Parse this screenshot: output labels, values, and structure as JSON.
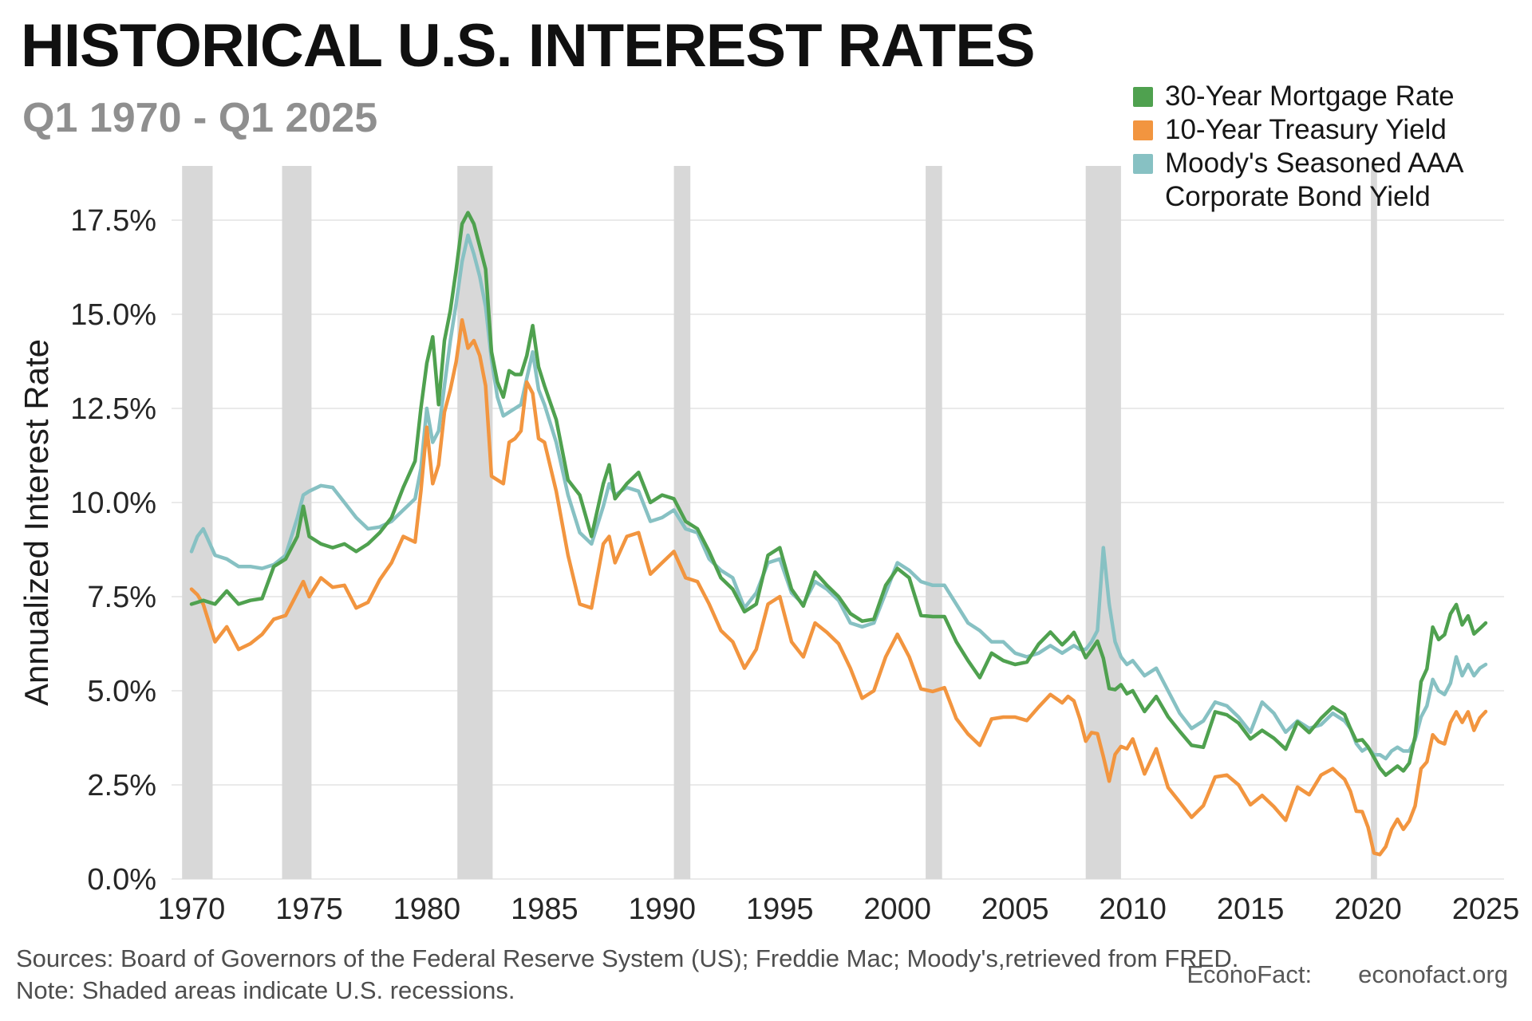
{
  "header": {
    "title": "HISTORICAL U.S. INTEREST RATES",
    "subtitle": "Q1 1970 - Q1 2025"
  },
  "footer": {
    "sources": "Sources: Board of Governors of the Federal Reserve System (US); Freddie Mac; Moody's,retrieved from FRED.",
    "note": "Note: Shaded areas indicate U.S. recessions.",
    "brand": "EconoFact:",
    "site": "econofact.org"
  },
  "chart_data": {
    "type": "line",
    "title": "HISTORICAL U.S. INTEREST RATES",
    "subtitle": "Q1 1970 - Q1 2025",
    "xlabel": "",
    "ylabel": "Annualized Interest Rate",
    "ylim": [
      0,
      18.9
    ],
    "xlim": [
      1969.2,
      2025.8
    ],
    "grid": true,
    "legend_position": "top-right",
    "grid_color": "#EAEAEA",
    "band_color": "#D8D8D8",
    "yticks": {
      "values": [
        0,
        2.5,
        5,
        7.5,
        10,
        12.5,
        15,
        17.5
      ],
      "labels": [
        "0.0%",
        "2.5%",
        "5.0%",
        "7.5%",
        "10.0%",
        "12.5%",
        "15.0%",
        "17.5%"
      ]
    },
    "xticks": [
      1970,
      1975,
      1980,
      1985,
      1990,
      1995,
      2000,
      2005,
      2010,
      2015,
      2020,
      2025
    ],
    "recessions": [
      [
        1969.6,
        1970.9
      ],
      [
        1973.85,
        1975.1
      ],
      [
        1981.3,
        1982.8
      ],
      [
        1990.5,
        1991.2
      ],
      [
        2001.2,
        2001.9
      ],
      [
        2008.0,
        2009.5
      ],
      [
        2020.12,
        2020.38
      ]
    ],
    "x": [
      1970,
      1970.25,
      1970.5,
      1971,
      1971.5,
      1972,
      1972.5,
      1973,
      1973.5,
      1974,
      1974.5,
      1974.75,
      1975,
      1975.5,
      1976,
      1976.5,
      1977,
      1977.5,
      1978,
      1978.5,
      1979,
      1979.5,
      1979.75,
      1980,
      1980.25,
      1980.5,
      1980.75,
      1981,
      1981.25,
      1981.5,
      1981.75,
      1982,
      1982.25,
      1982.5,
      1982.75,
      1983,
      1983.25,
      1983.5,
      1983.75,
      1984,
      1984.25,
      1984.5,
      1984.75,
      1985,
      1985.5,
      1986,
      1986.5,
      1987,
      1987.5,
      1987.75,
      1988,
      1988.5,
      1989,
      1989.5,
      1990,
      1990.5,
      1991,
      1991.5,
      1992,
      1992.5,
      1993,
      1993.5,
      1994,
      1994.5,
      1995,
      1995.5,
      1996,
      1996.5,
      1997,
      1997.5,
      1998,
      1998.5,
      1999,
      1999.5,
      2000,
      2000.5,
      2001,
      2001.5,
      2002,
      2002.5,
      2003,
      2003.5,
      2004,
      2004.5,
      2005,
      2005.5,
      2006,
      2006.5,
      2007,
      2007.25,
      2007.5,
      2007.75,
      2008,
      2008.25,
      2008.5,
      2008.75,
      2009,
      2009.25,
      2009.5,
      2009.75,
      2010,
      2010.5,
      2011,
      2011.5,
      2012,
      2012.5,
      2013,
      2013.5,
      2014,
      2014.5,
      2015,
      2015.5,
      2016,
      2016.5,
      2017,
      2017.5,
      2018,
      2018.5,
      2019,
      2019.25,
      2019.5,
      2019.75,
      2020,
      2020.25,
      2020.5,
      2020.75,
      2021,
      2021.25,
      2021.5,
      2021.75,
      2022,
      2022.25,
      2022.5,
      2022.75,
      2023,
      2023.25,
      2023.5,
      2023.75,
      2024,
      2024.25,
      2024.5,
      2024.75,
      2025
    ],
    "series": [
      {
        "name": "30-Year Mortgage Rate",
        "legend_lines": [
          "30-Year Mortgage Rate"
        ],
        "color": "#4FA14F",
        "values": [
          7.3,
          7.35,
          7.4,
          7.3,
          7.65,
          7.3,
          7.4,
          7.45,
          8.3,
          8.5,
          9.1,
          9.9,
          9.1,
          8.9,
          8.8,
          8.9,
          8.7,
          8.9,
          9.2,
          9.6,
          10.4,
          11.1,
          12.5,
          13.7,
          14.4,
          12.6,
          14.3,
          15.1,
          16.2,
          17.4,
          17.7,
          17.4,
          16.8,
          16.2,
          14.0,
          13.2,
          12.8,
          13.5,
          13.4,
          13.4,
          13.9,
          14.7,
          13.6,
          13.1,
          12.2,
          10.6,
          10.2,
          9.1,
          10.5,
          11.0,
          10.1,
          10.5,
          10.8,
          10.0,
          10.2,
          10.1,
          9.5,
          9.3,
          8.7,
          8.0,
          7.7,
          7.1,
          7.3,
          8.6,
          8.8,
          7.7,
          7.25,
          8.15,
          7.8,
          7.5,
          7.05,
          6.85,
          6.9,
          7.8,
          8.25,
          8.0,
          7.0,
          6.97,
          6.97,
          6.3,
          5.8,
          5.35,
          6.0,
          5.8,
          5.7,
          5.76,
          6.24,
          6.56,
          6.22,
          6.37,
          6.55,
          6.23,
          5.88,
          6.09,
          6.32,
          5.86,
          5.06,
          5.03,
          5.16,
          4.92,
          5.0,
          4.45,
          4.85,
          4.31,
          3.92,
          3.55,
          3.5,
          4.44,
          4.36,
          4.14,
          3.72,
          3.95,
          3.74,
          3.45,
          4.17,
          3.89,
          4.27,
          4.57,
          4.37,
          4.0,
          3.67,
          3.7,
          3.51,
          3.23,
          2.95,
          2.76,
          2.88,
          3.0,
          2.87,
          3.08,
          3.79,
          5.24,
          5.58,
          6.69,
          6.36,
          6.49,
          7.04,
          7.29,
          6.75,
          6.99,
          6.51,
          6.65,
          6.8
        ]
      },
      {
        "name": "10-Year Treasury Yield",
        "legend_lines": [
          "10-Year Treasury Yield"
        ],
        "color": "#F2953F",
        "values": [
          7.7,
          7.55,
          7.3,
          6.3,
          6.7,
          6.1,
          6.25,
          6.5,
          6.9,
          7.0,
          7.6,
          7.9,
          7.5,
          8.0,
          7.75,
          7.8,
          7.2,
          7.35,
          7.95,
          8.4,
          9.1,
          8.95,
          10.3,
          12.0,
          10.5,
          11.0,
          12.4,
          13.0,
          13.75,
          14.85,
          14.1,
          14.3,
          13.9,
          13.1,
          10.7,
          10.6,
          10.5,
          11.6,
          11.7,
          11.9,
          13.2,
          12.9,
          11.7,
          11.6,
          10.3,
          8.6,
          7.3,
          7.2,
          8.9,
          9.1,
          8.4,
          9.1,
          9.2,
          8.1,
          8.4,
          8.7,
          8.0,
          7.9,
          7.3,
          6.6,
          6.3,
          5.6,
          6.1,
          7.3,
          7.5,
          6.3,
          5.9,
          6.8,
          6.55,
          6.25,
          5.6,
          4.8,
          5.0,
          5.9,
          6.5,
          5.9,
          5.05,
          4.98,
          5.08,
          4.26,
          3.85,
          3.55,
          4.25,
          4.3,
          4.3,
          4.21,
          4.57,
          4.9,
          4.68,
          4.85,
          4.73,
          4.26,
          3.66,
          3.89,
          3.86,
          3.25,
          2.6,
          3.31,
          3.52,
          3.46,
          3.72,
          2.79,
          3.46,
          2.43,
          2.04,
          1.64,
          1.95,
          2.71,
          2.76,
          2.5,
          1.97,
          2.22,
          1.92,
          1.56,
          2.44,
          2.24,
          2.76,
          2.93,
          2.65,
          2.33,
          1.8,
          1.79,
          1.38,
          0.69,
          0.65,
          0.86,
          1.32,
          1.59,
          1.32,
          1.54,
          1.94,
          2.93,
          3.11,
          3.83,
          3.65,
          3.59,
          4.15,
          4.44,
          4.16,
          4.44,
          3.95,
          4.28,
          4.45
        ]
      },
      {
        "name": "Moody's Seasoned AAA Corporate Bond Yield",
        "legend_lines": [
          "Moody's Seasoned AAA",
          "Corporate Bond Yield"
        ],
        "color": "#87C1C3",
        "values": [
          8.7,
          9.1,
          9.3,
          8.6,
          8.5,
          8.3,
          8.3,
          8.25,
          8.35,
          8.6,
          9.6,
          10.2,
          10.3,
          10.45,
          10.4,
          10.0,
          9.6,
          9.3,
          9.35,
          9.5,
          9.8,
          10.1,
          10.9,
          12.5,
          11.6,
          11.9,
          13.1,
          14.3,
          15.3,
          16.4,
          17.1,
          16.6,
          16.0,
          15.2,
          13.8,
          12.8,
          12.3,
          12.4,
          12.5,
          12.6,
          13.3,
          14.0,
          13.0,
          12.6,
          11.6,
          10.2,
          9.2,
          8.9,
          9.9,
          10.5,
          10.2,
          10.4,
          10.3,
          9.5,
          9.6,
          9.8,
          9.3,
          9.2,
          8.5,
          8.2,
          8.0,
          7.2,
          7.6,
          8.4,
          8.5,
          7.6,
          7.3,
          7.9,
          7.7,
          7.4,
          6.8,
          6.7,
          6.8,
          7.6,
          8.4,
          8.2,
          7.9,
          7.8,
          7.8,
          7.3,
          6.8,
          6.6,
          6.3,
          6.3,
          6.0,
          5.9,
          6.0,
          6.2,
          6.0,
          6.1,
          6.2,
          6.1,
          6.1,
          6.3,
          6.6,
          8.8,
          7.3,
          6.3,
          5.9,
          5.7,
          5.8,
          5.4,
          5.6,
          5.0,
          4.4,
          4.0,
          4.2,
          4.7,
          4.6,
          4.3,
          3.9,
          4.7,
          4.4,
          3.9,
          4.2,
          4.0,
          4.1,
          4.4,
          4.2,
          4.0,
          3.6,
          3.4,
          3.5,
          3.3,
          3.3,
          3.2,
          3.4,
          3.5,
          3.4,
          3.4,
          3.7,
          4.3,
          4.6,
          5.3,
          5.0,
          4.9,
          5.2,
          5.9,
          5.4,
          5.7,
          5.4,
          5.6,
          5.7
        ]
      }
    ]
  }
}
